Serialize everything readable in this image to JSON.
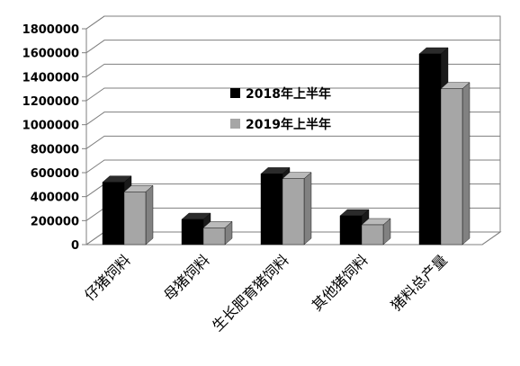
{
  "chart_data": {
    "type": "bar",
    "title": "",
    "xlabel": "",
    "ylabel": "",
    "categories": [
      "仔猪饲料",
      "母猪饲料",
      "生长肥育猪饲料",
      "其他猪饲料",
      "猪料总产量"
    ],
    "series": [
      {
        "name": "2018年上半年",
        "values": [
          520000,
          210000,
          590000,
          240000,
          1590000
        ],
        "color": "#000000"
      },
      {
        "name": "2019年上半年",
        "values": [
          440000,
          140000,
          550000,
          165000,
          1300000
        ],
        "color": "#a6a6a6"
      }
    ],
    "ylim": [
      0,
      1800000
    ],
    "yticks": [
      "0",
      "200000",
      "400000",
      "600000",
      "800000",
      "1000000",
      "1200000",
      "1400000",
      "1600000",
      "1800000"
    ],
    "grid": true,
    "legend_position": "center"
  }
}
